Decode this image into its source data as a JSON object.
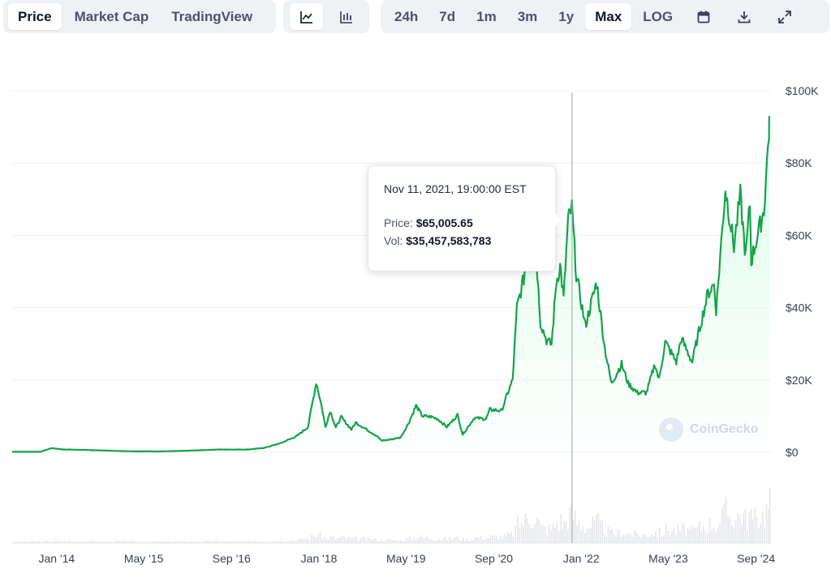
{
  "toolbar": {
    "data_tabs": [
      {
        "label": "Price",
        "active": true
      },
      {
        "label": "Market Cap",
        "active": false
      },
      {
        "label": "TradingView",
        "active": false
      }
    ],
    "chart_types": [
      {
        "icon": "line-chart-icon",
        "active": true
      },
      {
        "icon": "candlestick-chart-icon",
        "active": false
      }
    ],
    "ranges": [
      {
        "label": "24h",
        "active": false
      },
      {
        "label": "7d",
        "active": false
      },
      {
        "label": "1m",
        "active": false
      },
      {
        "label": "3m",
        "active": false
      },
      {
        "label": "1y",
        "active": false
      },
      {
        "label": "Max",
        "active": true
      },
      {
        "label": "LOG",
        "active": false
      }
    ],
    "tools": [
      {
        "icon": "calendar-icon"
      },
      {
        "icon": "download-icon"
      },
      {
        "icon": "expand-icon"
      }
    ]
  },
  "tooltip": {
    "date": "Nov 11, 2021, 19:00:00 EST",
    "price_label": "Price:",
    "price_value": "$65,005.65",
    "vol_label": "Vol:",
    "vol_value": "$35,457,583,783"
  },
  "watermark": "CoinGecko",
  "colors": {
    "line": "#16a34a",
    "fill": "#dcfce7",
    "volume": "#e5e7eb",
    "grid": "#eef0f3",
    "crosshair": "#9ca3af"
  },
  "chart_data": {
    "type": "line",
    "title": "",
    "xlabel": "",
    "ylabel": "",
    "x_tick_labels": [
      "Jan '14",
      "May '15",
      "Sep '16",
      "Jan '18",
      "May '19",
      "Sep '20",
      "Jan '22",
      "May '23",
      "Sep '24"
    ],
    "y_tick_labels": [
      "$0",
      "$20K",
      "$40K",
      "$60K",
      "$80K",
      "$100K"
    ],
    "ylim": [
      0,
      100000
    ],
    "grid": true,
    "series": [
      {
        "points": [
          [
            "2013-04-28",
            135
          ],
          [
            "2013-10-01",
            125
          ],
          [
            "2013-12-04",
            1150
          ],
          [
            "2014-02-01",
            800
          ],
          [
            "2014-06-01",
            650
          ],
          [
            "2014-12-01",
            380
          ],
          [
            "2015-03-01",
            250
          ],
          [
            "2015-08-01",
            230
          ],
          [
            "2016-01-01",
            430
          ],
          [
            "2016-06-15",
            750
          ],
          [
            "2016-12-01",
            760
          ],
          [
            "2017-03-01",
            1200
          ],
          [
            "2017-06-01",
            2500
          ],
          [
            "2017-09-01",
            4500
          ],
          [
            "2017-11-01",
            7000
          ],
          [
            "2017-12-17",
            19400
          ],
          [
            "2018-01-15",
            13000
          ],
          [
            "2018-02-06",
            7000
          ],
          [
            "2018-03-05",
            11500
          ],
          [
            "2018-04-05",
            6800
          ],
          [
            "2018-05-05",
            9700
          ],
          [
            "2018-07-01",
            6300
          ],
          [
            "2018-07-25",
            8200
          ],
          [
            "2018-09-01",
            7000
          ],
          [
            "2018-11-20",
            4500
          ],
          [
            "2018-12-15",
            3200
          ],
          [
            "2019-02-01",
            3500
          ],
          [
            "2019-04-01",
            4100
          ],
          [
            "2019-05-15",
            8000
          ],
          [
            "2019-06-26",
            12900
          ],
          [
            "2019-08-01",
            10000
          ],
          [
            "2019-09-20",
            9800
          ],
          [
            "2019-10-25",
            9200
          ],
          [
            "2019-12-15",
            7000
          ],
          [
            "2020-02-12",
            10300
          ],
          [
            "2020-03-12",
            4900
          ],
          [
            "2020-05-15",
            9500
          ],
          [
            "2020-07-20",
            9200
          ],
          [
            "2020-08-10",
            11800
          ],
          [
            "2020-10-15",
            11500
          ],
          [
            "2020-11-15",
            16000
          ],
          [
            "2020-12-15",
            20000
          ],
          [
            "2021-01-08",
            40000
          ],
          [
            "2021-02-15",
            48000
          ],
          [
            "2021-03-13",
            61000
          ],
          [
            "2021-04-14",
            63500
          ],
          [
            "2021-05-19",
            36000
          ],
          [
            "2021-06-22",
            31000
          ],
          [
            "2021-07-20",
            29800
          ],
          [
            "2021-08-15",
            47000
          ],
          [
            "2021-09-06",
            51500
          ],
          [
            "2021-09-25",
            42500
          ],
          [
            "2021-10-20",
            64000
          ],
          [
            "2021-11-10",
            67500
          ],
          [
            "2021-12-05",
            49000
          ],
          [
            "2022-01-24",
            35000
          ],
          [
            "2022-03-28",
            47000
          ],
          [
            "2022-05-12",
            29000
          ],
          [
            "2022-06-18",
            19000
          ],
          [
            "2022-08-14",
            24400
          ],
          [
            "2022-09-20",
            19000
          ],
          [
            "2022-11-09",
            16500
          ],
          [
            "2022-12-31",
            16500
          ],
          [
            "2023-02-16",
            24500
          ],
          [
            "2023-03-10",
            20000
          ],
          [
            "2023-04-14",
            30500
          ],
          [
            "2023-06-15",
            25000
          ],
          [
            "2023-07-13",
            31500
          ],
          [
            "2023-09-11",
            25000
          ],
          [
            "2023-10-24",
            34500
          ],
          [
            "2023-12-08",
            44000
          ],
          [
            "2024-01-11",
            46500
          ],
          [
            "2024-01-23",
            39500
          ],
          [
            "2024-03-14",
            73000
          ],
          [
            "2024-05-01",
            57000
          ],
          [
            "2024-06-05",
            71000
          ],
          [
            "2024-07-05",
            54000
          ],
          [
            "2024-07-29",
            69000
          ],
          [
            "2024-08-05",
            53000
          ],
          [
            "2024-10-15",
            67000
          ],
          [
            "2024-11-12",
            89000
          ],
          [
            "2024-11-14",
            93000
          ]
        ]
      }
    ],
    "hover_date": "2021-11-11"
  }
}
